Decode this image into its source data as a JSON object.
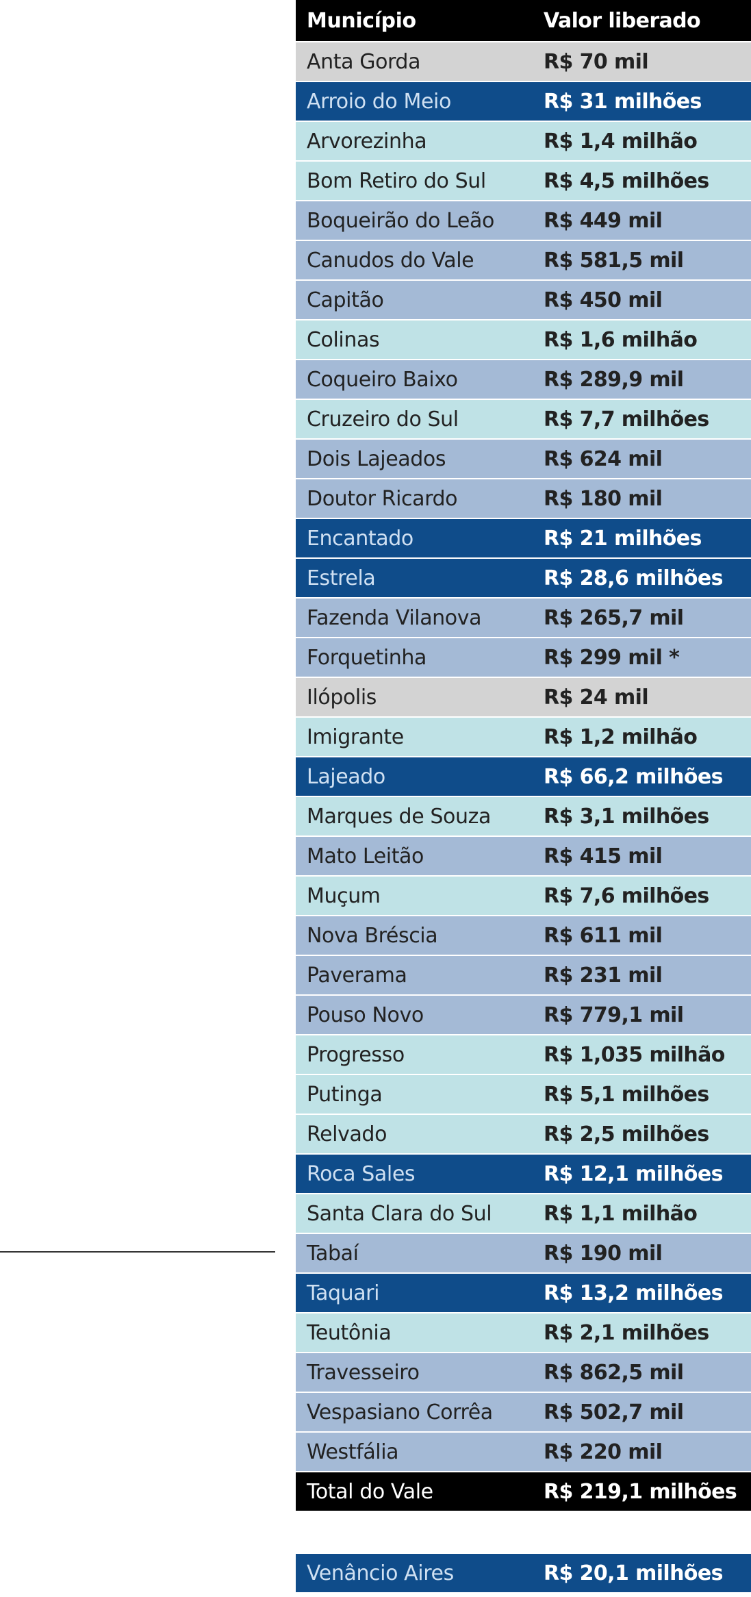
{
  "header": {
    "municipio": "Município",
    "valor": "Valor liberado"
  },
  "rows": [
    {
      "name": "Anta Gorda",
      "value": "R$ 70 mil",
      "tone": "gray"
    },
    {
      "name": "Arroio do Meio",
      "value": "R$ 31 milhões",
      "tone": "dark"
    },
    {
      "name": "Arvorezinha",
      "value": "R$ 1,4 milhão",
      "tone": "light"
    },
    {
      "name": "Bom Retiro do Sul",
      "value": "R$ 4,5 milhões",
      "tone": "light"
    },
    {
      "name": "Boqueirão do Leão",
      "value": "R$ 449 mil",
      "tone": "mid"
    },
    {
      "name": "Canudos do Vale",
      "value": "R$ 581,5 mil",
      "tone": "mid"
    },
    {
      "name": "Capitão",
      "value": "R$ 450 mil",
      "tone": "mid"
    },
    {
      "name": "Colinas",
      "value": "R$ 1,6 milhão",
      "tone": "light"
    },
    {
      "name": "Coqueiro Baixo",
      "value": "R$ 289,9 mil",
      "tone": "mid"
    },
    {
      "name": "Cruzeiro do Sul",
      "value": "R$ 7,7 milhões",
      "tone": "light"
    },
    {
      "name": "Dois Lajeados",
      "value": "R$ 624 mil",
      "tone": "mid"
    },
    {
      "name": "Doutor Ricardo",
      "value": "R$ 180 mil",
      "tone": "mid"
    },
    {
      "name": "Encantado",
      "value": "R$ 21 milhões",
      "tone": "dark"
    },
    {
      "name": "Estrela",
      "value": "R$ 28,6 milhões",
      "tone": "dark"
    },
    {
      "name": "Fazenda Vilanova",
      "value": "R$ 265,7 mil",
      "tone": "mid"
    },
    {
      "name": "Forquetinha",
      "value": "R$ 299 mil *",
      "tone": "mid"
    },
    {
      "name": "Ilópolis",
      "value": "R$ 24 mil",
      "tone": "gray"
    },
    {
      "name": "Imigrante",
      "value": "R$ 1,2 milhão",
      "tone": "light"
    },
    {
      "name": "Lajeado",
      "value": "R$ 66,2 milhões",
      "tone": "dark"
    },
    {
      "name": "Marques de Souza",
      "value": "R$ 3,1 milhões",
      "tone": "light"
    },
    {
      "name": "Mato Leitão",
      "value": "R$ 415 mil",
      "tone": "mid"
    },
    {
      "name": "Muçum",
      "value": "R$ 7,6 milhões",
      "tone": "light"
    },
    {
      "name": "Nova Bréscia",
      "value": "R$ 611 mil",
      "tone": "mid"
    },
    {
      "name": "Paverama",
      "value": "R$ 231 mil",
      "tone": "mid"
    },
    {
      "name": "Pouso Novo",
      "value": "R$ 779,1 mil",
      "tone": "mid"
    },
    {
      "name": "Progresso",
      "value": "R$ 1,035 milhão",
      "tone": "light"
    },
    {
      "name": "Putinga",
      "value": "R$ 5,1 milhões",
      "tone": "light"
    },
    {
      "name": "Relvado",
      "value": "R$ 2,5 milhões",
      "tone": "light"
    },
    {
      "name": "Roca Sales",
      "value": "R$ 12,1 milhões",
      "tone": "dark"
    },
    {
      "name": "Santa Clara do Sul",
      "value": "R$ 1,1 milhão",
      "tone": "light"
    },
    {
      "name": "Tabaí",
      "value": "R$ 190 mil",
      "tone": "mid"
    },
    {
      "name": "Taquari",
      "value": "R$ 13,2 milhões",
      "tone": "dark"
    },
    {
      "name": "Teutônia",
      "value": "R$ 2,1 milhões",
      "tone": "light"
    },
    {
      "name": "Travesseiro",
      "value": "R$ 862,5 mil",
      "tone": "mid"
    },
    {
      "name": "Vespasiano Corrêa",
      "value": "R$ 502,7 mil",
      "tone": "mid"
    },
    {
      "name": "Westfália",
      "value": "R$ 220 mil",
      "tone": "mid"
    }
  ],
  "total": {
    "name": "Total do Vale",
    "value": "R$ 219,1 milhões"
  },
  "extra": {
    "name": "Venâncio Aires",
    "value": "R$ 20,1 milhões"
  },
  "colors": {
    "gray": "#d3d3d3",
    "dark": "#0f4c8a",
    "light": "#bfe2e6",
    "mid": "#a4bad6",
    "black": "#000000"
  }
}
